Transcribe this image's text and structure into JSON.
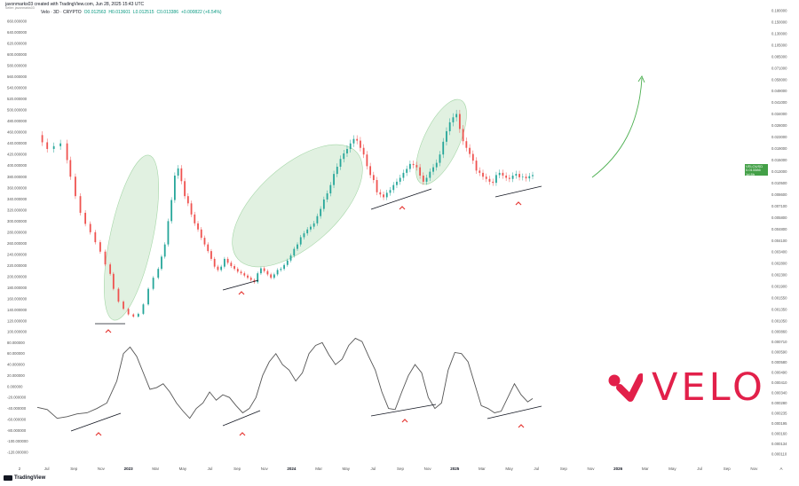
{
  "header": {
    "creator_line": "javonmarks03 created with TradingView.com, Jun 28, 2025 15:43 UTC",
    "sub_line": "Seller: javonmarks03"
  },
  "legend": {
    "symbol": "Velo · 3D · CRYPTO",
    "o": "O0.012563",
    "h": "H0.013601",
    "l": "L0.012515",
    "c": "C0.013386",
    "chg": "+0.000822 (+6.54%)"
  },
  "price_tag": {
    "symbol": "VELOUSD",
    "price": "0.013386",
    "time": "1d 8h"
  },
  "logo_text": "VELO",
  "tradingview_label": "TradingView",
  "colors": {
    "up": "#26a69a",
    "down": "#ef5350",
    "ellipse": "#c8e6c9",
    "velo": "#e2204a",
    "arrow": "#4caf50",
    "osc": "#555555"
  },
  "icons": [
    "velo-logo-icon",
    "tradingview-logo-icon",
    "caret-up-icon",
    "trend-arrow-icon"
  ],
  "chart_data": [
    {
      "type": "candlestick",
      "title": "",
      "ylim": [
        115,
        665
      ],
      "left_axis_ticks": [
        "660.000000",
        "640.000000",
        "620.000000",
        "600.000000",
        "580.000000",
        "560.000000",
        "540.000000",
        "520.000000",
        "500.000000",
        "480.000000",
        "460.000000",
        "440.000000",
        "420.000000",
        "400.000000",
        "380.000000",
        "360.000000",
        "340.000000",
        "320.000000",
        "300.000000",
        "280.000000",
        "260.000000",
        "240.000000",
        "220.000000",
        "200.000000",
        "180.000000",
        "160.000000",
        "140.000000",
        "120.000000"
      ],
      "right_axis_ticks": [
        "0.180000",
        "0.150000",
        "0.130000",
        "0.105000",
        "0.085000",
        "0.071000",
        "0.058000",
        "0.049000",
        "0.041000",
        "0.034000",
        "0.028000",
        "0.023000",
        "0.019000",
        "0.015000",
        "0.013000",
        "0.010500",
        "0.008600",
        "0.007100",
        "0.005800",
        "0.004800",
        "0.004100",
        "0.003400",
        "0.002800",
        "0.002300",
        "0.001900",
        "0.001550",
        "0.001350",
        "0.001050"
      ],
      "x_axis_ticks": [
        "2",
        "Jul",
        "Sep",
        "Nov",
        "2023",
        "Mar",
        "May",
        "Jul",
        "Sep",
        "Nov",
        "2024",
        "Mar",
        "May",
        "Jul",
        "Sep",
        "Nov",
        "2025",
        "Mar",
        "May",
        "Jul",
        "Sep",
        "Nov",
        "2026",
        "Mar",
        "May",
        "Jul",
        "Sep",
        "Nov",
        "A"
      ],
      "price_path": [
        [
          0,
          455
        ],
        [
          3,
          442
        ],
        [
          6,
          430
        ],
        [
          10,
          435
        ],
        [
          14,
          440
        ],
        [
          18,
          410
        ],
        [
          20,
          380
        ],
        [
          23,
          345
        ],
        [
          26,
          315
        ],
        [
          29,
          295
        ],
        [
          32,
          280
        ],
        [
          35,
          262
        ],
        [
          38,
          245
        ],
        [
          41,
          222
        ],
        [
          44,
          205
        ],
        [
          46,
          178
        ],
        [
          49,
          155
        ],
        [
          52,
          142
        ],
        [
          55,
          132
        ],
        [
          58,
          128
        ],
        [
          61,
          133
        ],
        [
          64,
          150
        ],
        [
          67,
          178
        ],
        [
          70,
          198
        ],
        [
          73,
          214
        ],
        [
          75,
          236
        ],
        [
          77,
          258
        ],
        [
          79,
          300
        ],
        [
          81,
          338
        ],
        [
          83,
          382
        ],
        [
          85,
          395
        ],
        [
          87,
          372
        ],
        [
          89,
          345
        ],
        [
          91,
          332
        ],
        [
          93,
          312
        ],
        [
          95,
          296
        ],
        [
          97,
          285
        ],
        [
          99,
          270
        ],
        [
          101,
          258
        ],
        [
          103,
          246
        ],
        [
          105,
          232
        ],
        [
          107,
          218
        ],
        [
          109,
          212
        ],
        [
          111,
          218
        ],
        [
          113,
          232
        ],
        [
          115,
          225
        ],
        [
          117,
          219
        ],
        [
          119,
          214
        ],
        [
          121,
          209
        ],
        [
          123,
          206
        ],
        [
          125,
          202
        ],
        [
          127,
          198
        ],
        [
          129,
          194
        ],
        [
          131,
          190
        ],
        [
          133,
          206
        ],
        [
          135,
          215
        ],
        [
          137,
          210
        ],
        [
          139,
          204
        ],
        [
          141,
          198
        ],
        [
          143,
          204
        ],
        [
          145,
          212
        ],
        [
          147,
          214
        ],
        [
          149,
          221
        ],
        [
          151,
          229
        ],
        [
          153,
          238
        ],
        [
          155,
          250
        ],
        [
          157,
          258
        ],
        [
          159,
          271
        ],
        [
          161,
          278
        ],
        [
          163,
          285
        ],
        [
          165,
          290
        ],
        [
          167,
          296
        ],
        [
          169,
          309
        ],
        [
          171,
          322
        ],
        [
          173,
          339
        ],
        [
          175,
          350
        ],
        [
          177,
          365
        ],
        [
          179,
          385
        ],
        [
          181,
          398
        ],
        [
          183,
          412
        ],
        [
          185,
          422
        ],
        [
          187,
          430
        ],
        [
          189,
          440
        ],
        [
          191,
          448
        ],
        [
          193,
          445
        ],
        [
          195,
          432
        ],
        [
          197,
          420
        ],
        [
          199,
          399
        ],
        [
          201,
          383
        ],
        [
          203,
          374
        ],
        [
          205,
          352
        ],
        [
          207,
          348
        ],
        [
          209,
          343
        ],
        [
          211,
          351
        ],
        [
          213,
          356
        ],
        [
          215,
          365
        ],
        [
          217,
          371
        ],
        [
          219,
          378
        ],
        [
          221,
          387
        ],
        [
          223,
          394
        ],
        [
          225,
          403
        ],
        [
          227,
          401
        ],
        [
          229,
          397
        ],
        [
          231,
          382
        ],
        [
          233,
          371
        ],
        [
          235,
          378
        ],
        [
          237,
          389
        ],
        [
          239,
          397
        ],
        [
          241,
          405
        ],
        [
          243,
          420
        ],
        [
          245,
          443
        ],
        [
          247,
          462
        ],
        [
          249,
          478
        ],
        [
          251,
          487
        ],
        [
          253,
          493
        ],
        [
          255,
          466
        ],
        [
          257,
          444
        ],
        [
          259,
          432
        ],
        [
          261,
          421
        ],
        [
          263,
          409
        ],
        [
          265,
          391
        ],
        [
          267,
          387
        ],
        [
          269,
          380
        ],
        [
          271,
          376
        ],
        [
          273,
          371
        ],
        [
          275,
          369
        ],
        [
          277,
          383
        ],
        [
          279,
          387
        ],
        [
          281,
          382
        ],
        [
          283,
          378
        ],
        [
          285,
          376
        ],
        [
          287,
          382
        ],
        [
          289,
          385
        ],
        [
          291,
          379
        ],
        [
          293,
          380
        ],
        [
          295,
          377
        ],
        [
          297,
          381
        ],
        [
          299,
          383
        ]
      ],
      "price_points_note": "",
      "oscillator_path": [
        [
          0,
          -38
        ],
        [
          6,
          -42
        ],
        [
          12,
          -58
        ],
        [
          18,
          -55
        ],
        [
          24,
          -50
        ],
        [
          30,
          -48
        ],
        [
          36,
          -40
        ],
        [
          42,
          -30
        ],
        [
          48,
          10
        ],
        [
          52,
          60
        ],
        [
          56,
          72
        ],
        [
          60,
          55
        ],
        [
          64,
          25
        ],
        [
          68,
          -5
        ],
        [
          72,
          -2
        ],
        [
          76,
          5
        ],
        [
          80,
          -10
        ],
        [
          84,
          -30
        ],
        [
          88,
          -45
        ],
        [
          92,
          -58
        ],
        [
          96,
          -40
        ],
        [
          100,
          -30
        ],
        [
          104,
          -10
        ],
        [
          108,
          -25
        ],
        [
          112,
          -15
        ],
        [
          116,
          -20
        ],
        [
          120,
          -35
        ],
        [
          124,
          -48
        ],
        [
          128,
          -40
        ],
        [
          132,
          -20
        ],
        [
          136,
          20
        ],
        [
          140,
          45
        ],
        [
          144,
          60
        ],
        [
          148,
          40
        ],
        [
          152,
          30
        ],
        [
          156,
          10
        ],
        [
          160,
          25
        ],
        [
          164,
          60
        ],
        [
          168,
          75
        ],
        [
          172,
          80
        ],
        [
          176,
          58
        ],
        [
          180,
          40
        ],
        [
          184,
          50
        ],
        [
          188,
          75
        ],
        [
          192,
          88
        ],
        [
          196,
          82
        ],
        [
          200,
          55
        ],
        [
          204,
          30
        ],
        [
          208,
          -10
        ],
        [
          212,
          -40
        ],
        [
          216,
          -42
        ],
        [
          220,
          -10
        ],
        [
          224,
          20
        ],
        [
          228,
          40
        ],
        [
          232,
          25
        ],
        [
          236,
          -20
        ],
        [
          240,
          -40
        ],
        [
          244,
          -30
        ],
        [
          248,
          30
        ],
        [
          252,
          62
        ],
        [
          256,
          60
        ],
        [
          260,
          45
        ],
        [
          264,
          5
        ],
        [
          268,
          -35
        ],
        [
          272,
          -40
        ],
        [
          276,
          -48
        ],
        [
          280,
          -45
        ],
        [
          284,
          -20
        ],
        [
          288,
          5
        ],
        [
          292,
          -15
        ],
        [
          296,
          -28
        ],
        [
          299,
          -22
        ]
      ],
      "oscillator_axis_ticks": [
        "100.000000",
        "80.000000",
        "60.000000",
        "40.000000",
        "20.000000",
        "0.000000",
        "-20.000000",
        "-40.000000",
        "-60.000000",
        "-80.000000",
        "-100.000000",
        "-120.000000"
      ],
      "oscillator_right_ticks": [
        "0.000860",
        "0.000710",
        "0.000590",
        "0.000580",
        "0.000490",
        "0.000410",
        "0.000340",
        "0.000280",
        "0.000235",
        "0.000195",
        "0.000160",
        "0.000134",
        "0.000110"
      ]
    }
  ]
}
